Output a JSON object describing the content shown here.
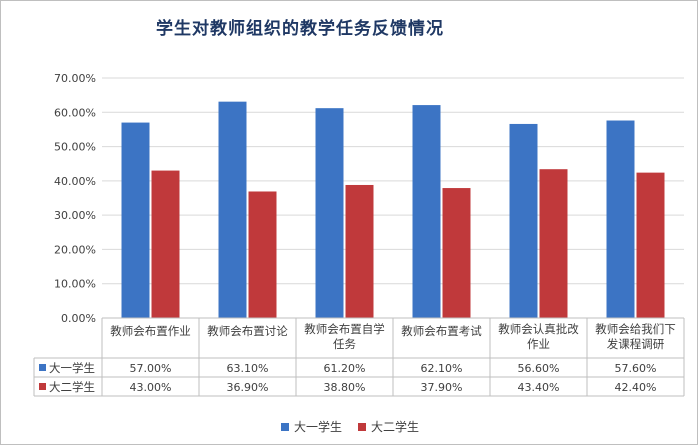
{
  "chart_data": {
    "type": "bar",
    "title": "学生对教师组织的教学任务反馈情况",
    "categories": [
      [
        "教师会布置作业"
      ],
      [
        "教师会布置讨论"
      ],
      [
        "教师会布置自学",
        "任务"
      ],
      [
        "教师会布置考试"
      ],
      [
        "教师会认真批改",
        "作业"
      ],
      [
        "教师会给我们下",
        "发课程调研"
      ]
    ],
    "series": [
      {
        "name": "大一学生",
        "color": "#3c74c4",
        "values": [
          57.0,
          63.1,
          61.2,
          62.1,
          56.6,
          57.6
        ],
        "labels": [
          "57.00%",
          "63.10%",
          "61.20%",
          "62.10%",
          "56.60%",
          "57.60%"
        ]
      },
      {
        "name": "大二学生",
        "color": "#c0393b",
        "values": [
          43.0,
          36.9,
          38.8,
          37.9,
          43.4,
          42.4
        ],
        "labels": [
          "43.00%",
          "36.90%",
          "38.80%",
          "37.90%",
          "43.40%",
          "42.40%"
        ]
      }
    ],
    "yticks": [
      "0.00%",
      "10.00%",
      "20.00%",
      "30.00%",
      "40.00%",
      "50.00%",
      "60.00%",
      "70.00%"
    ],
    "ylim": [
      0,
      70
    ],
    "grid": true,
    "legend_position": "bottom",
    "data_table": true
  }
}
